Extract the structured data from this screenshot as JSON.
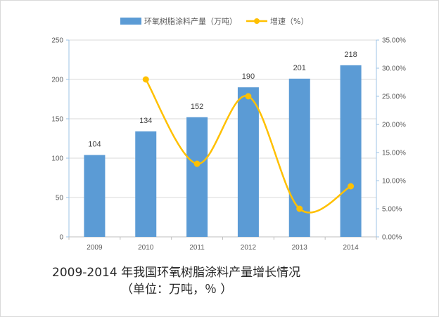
{
  "chart_data": {
    "type": "bar",
    "categories": [
      "2009",
      "2010",
      "2011",
      "2012",
      "2013",
      "2014"
    ],
    "series": [
      {
        "name": "环氧树脂涂料产量（万吨）",
        "type": "bar",
        "axis": "left",
        "color": "#5b9bd5",
        "values": [
          104,
          134,
          152,
          190,
          201,
          218
        ],
        "data_labels": [
          "104",
          "134",
          "152",
          "190",
          "201",
          "218"
        ]
      },
      {
        "name": "增速（%）",
        "type": "line",
        "axis": "right",
        "smooth": true,
        "color": "#ffc000",
        "values": [
          null,
          28.0,
          13.0,
          25.0,
          5.0,
          9.0
        ]
      }
    ],
    "ylim": [
      0,
      250
    ],
    "y_ticks": [
      "0",
      "50",
      "100",
      "150",
      "200",
      "250"
    ],
    "y2lim": [
      0,
      35
    ],
    "y2_ticks": [
      "0.00%",
      "5.00%",
      "10.00%",
      "15.00%",
      "20.00%",
      "25.00%",
      "30.00%",
      "35.00%"
    ],
    "grid": true,
    "legend_position": "top"
  },
  "caption": {
    "line1": "2009-2014  年我国环氧树脂涂料产量增长情况",
    "line2": "（单位：万吨，％ ）"
  }
}
